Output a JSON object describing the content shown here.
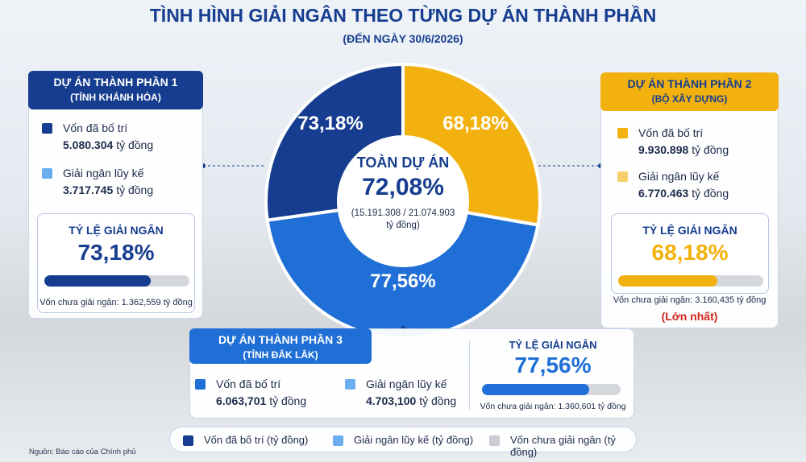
{
  "title": "TÌNH HÌNH GIẢI NGÂN THEO TỪNG DỰ ÁN THÀNH PHẦN",
  "subtitle": "(ĐẾN NGÀY 30/6/2026)",
  "center": {
    "label": "TOÀN DỰ ÁN",
    "rate": "72,08%",
    "detail": "(15.191.308 / 21.074.903 tỷ đồng)"
  },
  "projects": [
    {
      "name": "DỰ ÁN THÀNH PHẦN 1",
      "owner": "(TỈNH KHÁNH HÒA)",
      "allocated_label": "Vốn đã bố trí",
      "allocated": "5.080.304",
      "disbursed_label": "Giải ngân lũy kế",
      "disbursed": "3.717.745",
      "unit": "tỷ đồng",
      "rate_title": "TỶ LỆ GIẢI NGÂN",
      "rate": {
        "value": 73.18,
        "label": "73,18%"
      },
      "remaining": "Vốn chưa giải ngân: 1.362,559 tỷ đồng"
    },
    {
      "name": "DỰ ÁN THÀNH PHẦN 2",
      "owner": "(BỘ XÂY DỰNG)",
      "allocated_label": "Vốn đã bố trí",
      "allocated": "9.930.898",
      "disbursed_label": "Giải ngân lũy kế",
      "disbursed": "6.770.463",
      "unit": "tỷ đồng",
      "rate_title": "TỶ LỆ GIẢI NGÂN",
      "rate": {
        "value": 68.18,
        "label": "68,18%"
      },
      "remaining": "Vốn chưa giải ngân: 3.160,435 tỷ đồng",
      "note": "(Lớn nhất)"
    },
    {
      "name": "DỰ ÁN THÀNH PHẦN 3",
      "owner": "(TỈNH ĐẮK LẮK)",
      "allocated_label": "Vốn đã bố trí",
      "allocated": "6.063,701",
      "disbursed_label": "Giải ngân lũy kế",
      "disbursed": "4.703,100",
      "unit": "tỷ đồng",
      "rate_title": "TỶ LỆ GIẢI NGÂN",
      "rate": {
        "value": 77.56,
        "label": "77,56%"
      },
      "remaining": "Vốn chưa giải ngân: 1.360,601 tỷ đồng"
    }
  ],
  "legend": [
    "Vốn đã bố trí (tỷ đồng)",
    "Giải ngân lũy kế (tỷ đồng)",
    "Vốn chưa giải ngân (tỷ đồng)"
  ],
  "source": "Nguồn: Báo cáo của Chính phủ"
}
